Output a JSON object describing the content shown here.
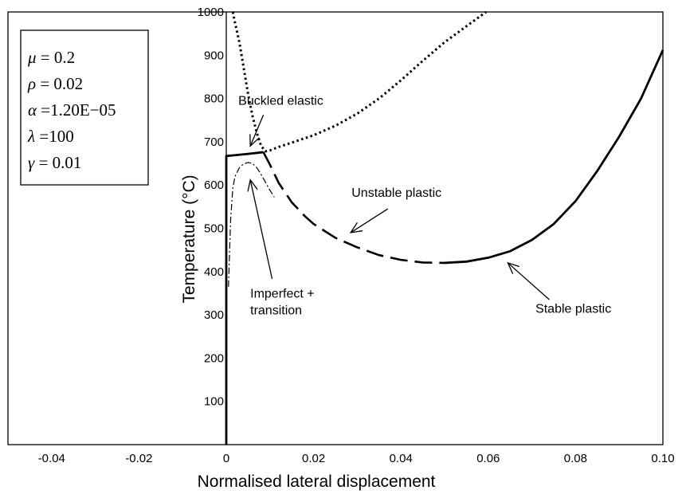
{
  "chart_data": {
    "type": "line",
    "title": "",
    "xlabel": "Normalised lateral displacement",
    "ylabel": "Temperature (°C)",
    "xlim": [
      -0.05,
      0.1
    ],
    "ylim": [
      0,
      1000
    ],
    "grid": false,
    "x_ticks": [
      "-0.04",
      "-0.02",
      "0",
      "0.02",
      "0.04",
      "0.06",
      "0.08",
      "0.10"
    ],
    "x_tick_values": [
      -0.04,
      -0.02,
      0,
      0.02,
      0.04,
      0.06,
      0.08,
      0.1
    ],
    "y_ticks": [
      "100",
      "200",
      "300",
      "400",
      "500",
      "600",
      "700",
      "800",
      "900",
      "1000"
    ],
    "y_tick_values": [
      100,
      200,
      300,
      400,
      500,
      600,
      700,
      800,
      900,
      1000
    ],
    "params": [
      {
        "sym": "μ",
        "text": " = 0.2"
      },
      {
        "sym": "ρ",
        "text": " = 0.02"
      },
      {
        "sym": "α",
        "text": " =1.20E−05"
      },
      {
        "sym": "λ",
        "text": " =100"
      },
      {
        "sym": "γ",
        "text": " = 0.01"
      }
    ],
    "series": [
      {
        "style": "solid",
        "points": [
          [
            0,
            0
          ],
          [
            0,
            667
          ],
          [
            0.002,
            669
          ],
          [
            0.005,
            672
          ],
          [
            0.0085,
            676
          ]
        ]
      },
      {
        "style": "dotted",
        "points": [
          [
            0.0015,
            1000
          ],
          [
            0.002,
            975
          ],
          [
            0.003,
            930
          ],
          [
            0.004,
            870
          ],
          [
            0.005,
            810
          ],
          [
            0.006,
            760
          ],
          [
            0.007,
            720
          ],
          [
            0.008,
            690
          ],
          [
            0.009,
            678
          ],
          [
            0.01,
            680
          ],
          [
            0.012,
            688
          ],
          [
            0.015,
            698
          ],
          [
            0.02,
            715
          ],
          [
            0.025,
            737
          ],
          [
            0.03,
            765
          ],
          [
            0.035,
            800
          ],
          [
            0.04,
            842
          ],
          [
            0.045,
            887
          ],
          [
            0.05,
            930
          ],
          [
            0.055,
            967
          ],
          [
            0.0595,
            1000
          ]
        ]
      },
      {
        "style": "dashed",
        "points": [
          [
            0.0085,
            676
          ],
          [
            0.01,
            647
          ],
          [
            0.012,
            605
          ],
          [
            0.015,
            560
          ],
          [
            0.018,
            528
          ],
          [
            0.02,
            510
          ],
          [
            0.025,
            478
          ],
          [
            0.03,
            456
          ],
          [
            0.035,
            438
          ],
          [
            0.04,
            427
          ],
          [
            0.045,
            421
          ],
          [
            0.05,
            420
          ]
        ]
      },
      {
        "style": "solid",
        "points": [
          [
            0.05,
            420
          ],
          [
            0.055,
            423
          ],
          [
            0.06,
            432
          ],
          [
            0.065,
            447
          ],
          [
            0.07,
            473
          ],
          [
            0.075,
            510
          ],
          [
            0.08,
            563
          ],
          [
            0.085,
            633
          ],
          [
            0.09,
            712
          ],
          [
            0.095,
            800
          ],
          [
            0.1,
            912
          ]
        ]
      },
      {
        "style": "dashdot",
        "points": [
          [
            0.0005,
            365
          ],
          [
            0.001,
            520
          ],
          [
            0.0015,
            593
          ],
          [
            0.002,
            620
          ],
          [
            0.003,
            640
          ],
          [
            0.004,
            649
          ],
          [
            0.005,
            652
          ],
          [
            0.006,
            650
          ],
          [
            0.007,
            640
          ],
          [
            0.008,
            624
          ],
          [
            0.009,
            606
          ],
          [
            0.01,
            588
          ],
          [
            0.011,
            572
          ]
        ]
      }
    ],
    "annotations": [
      {
        "lines": [
          "Buckled elastic"
        ],
        "x": 0.0125,
        "y": 785,
        "anchor": "middle",
        "arrow_from": [
          0.0085,
          762
        ],
        "arrow_to": [
          0.0055,
          690
        ]
      },
      {
        "lines": [
          "Unstable plastic"
        ],
        "x": 0.039,
        "y": 573,
        "anchor": "middle",
        "arrow_from": [
          0.037,
          545
        ],
        "arrow_to": [
          0.0285,
          490
        ]
      },
      {
        "lines": [
          "Imperfect +",
          "transition"
        ],
        "x": 0.0055,
        "y": 340,
        "anchor": "start",
        "arrow_from": [
          0.0105,
          383
        ],
        "arrow_to": [
          0.0055,
          612
        ]
      },
      {
        "lines": [
          "Stable plastic"
        ],
        "x": 0.0795,
        "y": 305,
        "anchor": "middle",
        "arrow_from": [
          0.074,
          335
        ],
        "arrow_to": [
          0.0645,
          420
        ]
      }
    ]
  }
}
